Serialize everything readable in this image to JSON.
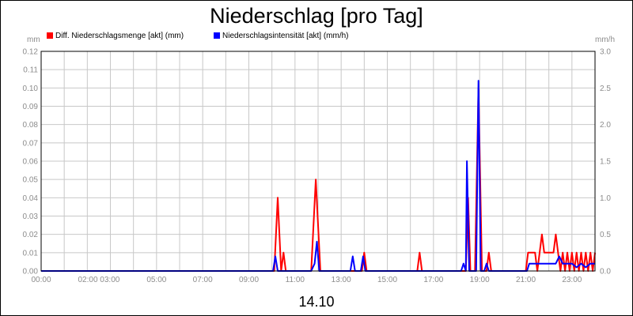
{
  "chart_data": {
    "type": "line",
    "title": "Niederschlag [pro Tag]",
    "date_label": "14.10",
    "y_left_unit": "mm",
    "y_right_unit": "mm/h",
    "y_left": {
      "min": 0,
      "max": 0.12,
      "ticks": [
        "0.00",
        "0.01",
        "0.02",
        "0.03",
        "0.04",
        "0.05",
        "0.06",
        "0.07",
        "0.08",
        "0.09",
        "0.10",
        "0.11",
        "0.12"
      ]
    },
    "y_right": {
      "min": 0,
      "max": 3.0,
      "ticks": [
        "0.0",
        "0.5",
        "1.0",
        "1.5",
        "2.0",
        "2.5",
        "3.0"
      ]
    },
    "x_range": [
      0,
      24
    ],
    "x_ticks": [
      {
        "label": "00:00",
        "hour": 0
      },
      {
        "label": "02:00 03:00",
        "hour": 2.5
      },
      {
        "label": "05:00",
        "hour": 5
      },
      {
        "label": "07:00",
        "hour": 7
      },
      {
        "label": "09:00",
        "hour": 9
      },
      {
        "label": "11:00",
        "hour": 11
      },
      {
        "label": "13:00",
        "hour": 13
      },
      {
        "label": "15:00",
        "hour": 15
      },
      {
        "label": "17:00",
        "hour": 17
      },
      {
        "label": "19:00",
        "hour": 19
      },
      {
        "label": "21:00",
        "hour": 21
      },
      {
        "label": "23:00",
        "hour": 23
      }
    ],
    "grid": true,
    "legend_position": "top-left",
    "series": [
      {
        "name": "Diff. Niederschlagsmenge [akt] (mm)",
        "color": "#ff0000",
        "axis": "left",
        "points": [
          [
            0,
            0
          ],
          [
            10.1,
            0
          ],
          [
            10.25,
            0.04
          ],
          [
            10.4,
            0
          ],
          [
            10.5,
            0.01
          ],
          [
            10.6,
            0
          ],
          [
            11.7,
            0
          ],
          [
            11.9,
            0.05
          ],
          [
            12.1,
            0
          ],
          [
            13.9,
            0
          ],
          [
            14.0,
            0.01
          ],
          [
            14.1,
            0
          ],
          [
            16.3,
            0
          ],
          [
            16.4,
            0.01
          ],
          [
            16.5,
            0
          ],
          [
            18.4,
            0
          ],
          [
            18.5,
            0.04
          ],
          [
            18.6,
            0
          ],
          [
            18.8,
            0
          ],
          [
            18.95,
            0.1
          ],
          [
            19.1,
            0
          ],
          [
            19.3,
            0
          ],
          [
            19.4,
            0.01
          ],
          [
            19.5,
            0
          ],
          [
            21.0,
            0
          ],
          [
            21.1,
            0.01
          ],
          [
            21.4,
            0.01
          ],
          [
            21.5,
            0
          ],
          [
            21.6,
            0.01
          ],
          [
            21.7,
            0.02
          ],
          [
            21.8,
            0.01
          ],
          [
            22.2,
            0.01
          ],
          [
            22.3,
            0.02
          ],
          [
            22.4,
            0.01
          ],
          [
            22.5,
            0
          ],
          [
            22.6,
            0.01
          ],
          [
            22.7,
            0
          ],
          [
            22.8,
            0.01
          ],
          [
            22.9,
            0
          ],
          [
            23.0,
            0.01
          ],
          [
            23.1,
            0
          ],
          [
            23.2,
            0.01
          ],
          [
            23.3,
            0
          ],
          [
            23.4,
            0.01
          ],
          [
            23.5,
            0
          ],
          [
            23.6,
            0.01
          ],
          [
            23.7,
            0
          ],
          [
            23.8,
            0.01
          ],
          [
            23.9,
            0
          ],
          [
            24,
            0.01
          ]
        ]
      },
      {
        "name": "Niederschlagsintensität [akt] (mm/h)",
        "color": "#0000ff",
        "axis": "right",
        "points": [
          [
            0,
            0
          ],
          [
            10.05,
            0
          ],
          [
            10.15,
            0.2
          ],
          [
            10.25,
            0
          ],
          [
            11.7,
            0
          ],
          [
            11.85,
            0.1
          ],
          [
            11.95,
            0.4
          ],
          [
            12.05,
            0
          ],
          [
            13.4,
            0
          ],
          [
            13.5,
            0.2
          ],
          [
            13.6,
            0
          ],
          [
            13.85,
            0
          ],
          [
            13.95,
            0.2
          ],
          [
            14.05,
            0
          ],
          [
            18.2,
            0
          ],
          [
            18.3,
            0.1
          ],
          [
            18.4,
            0
          ],
          [
            18.45,
            1.5
          ],
          [
            18.55,
            0
          ],
          [
            18.85,
            0
          ],
          [
            18.95,
            2.6
          ],
          [
            19.05,
            0
          ],
          [
            19.2,
            0
          ],
          [
            19.3,
            0.1
          ],
          [
            19.4,
            0
          ],
          [
            21.05,
            0
          ],
          [
            21.15,
            0.1
          ],
          [
            22.3,
            0.1
          ],
          [
            22.45,
            0.2
          ],
          [
            22.6,
            0.1
          ],
          [
            23.0,
            0.1
          ],
          [
            23.2,
            0.05
          ],
          [
            23.4,
            0.1
          ],
          [
            23.6,
            0.05
          ],
          [
            23.8,
            0.1
          ],
          [
            24,
            0.1
          ]
        ]
      }
    ]
  }
}
